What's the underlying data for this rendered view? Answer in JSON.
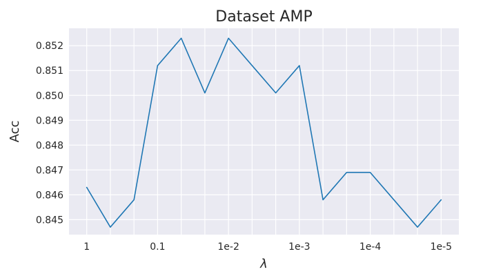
{
  "chart_data": {
    "type": "line",
    "title": "Dataset AMP",
    "xlabel": "λ",
    "ylabel": "Acc",
    "x_tick_labels": [
      "1",
      "0.1",
      "1e-2",
      "1e-3",
      "1e-4",
      "1e-5"
    ],
    "x_tick_positions": [
      0,
      3,
      6,
      9,
      12,
      15
    ],
    "y_tick_labels": [
      "0.845",
      "0.846",
      "0.847",
      "0.848",
      "0.849",
      "0.850",
      "0.851",
      "0.852"
    ],
    "y_ticks": [
      0.845,
      0.846,
      0.847,
      0.848,
      0.849,
      0.85,
      0.851,
      0.852
    ],
    "xlim": [
      -0.75,
      15.75
    ],
    "ylim": [
      0.8444,
      0.8527
    ],
    "grid": true,
    "colors": {
      "background": "#eaeaf2",
      "grid": "#ffffff",
      "series": "#1f77b4"
    },
    "series": [
      {
        "x": [
          0,
          1,
          2,
          3,
          4,
          5,
          6,
          7,
          8,
          9,
          10,
          11,
          12,
          13,
          14,
          15
        ],
        "values": [
          0.8463,
          0.8447,
          0.8458,
          0.8512,
          0.8523,
          0.8501,
          0.8523,
          0.8512,
          0.8501,
          0.8512,
          0.8458,
          0.8469,
          0.8469,
          0.8458,
          0.8447,
          0.8458
        ]
      }
    ]
  }
}
